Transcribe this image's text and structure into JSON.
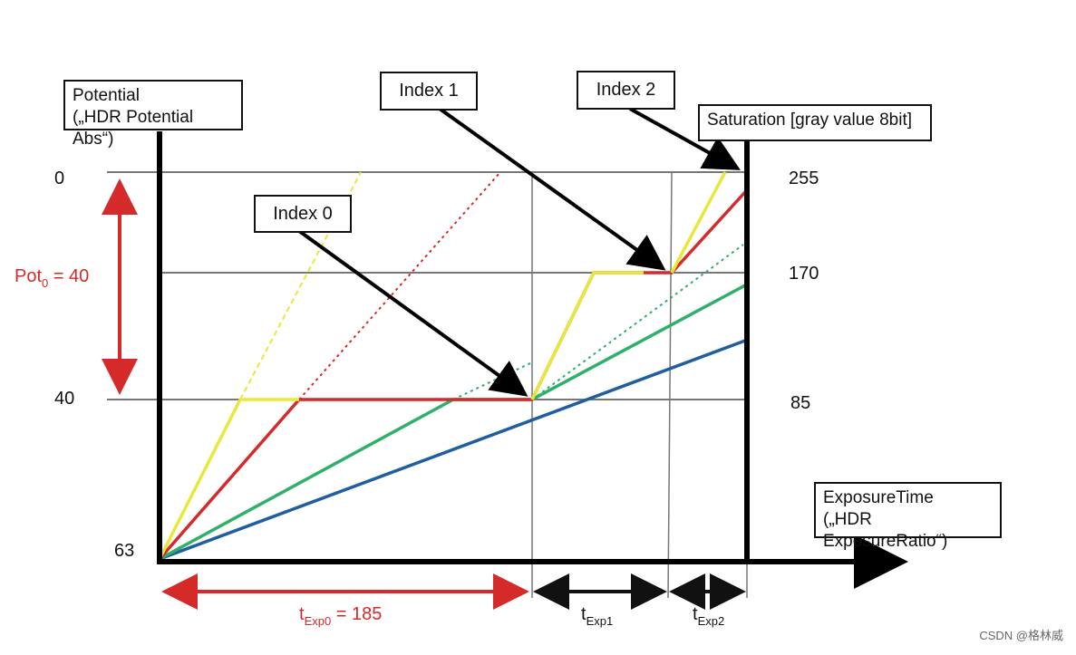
{
  "boxes": {
    "potential_line1": "Potential",
    "potential_line2": "(„HDR Potential Abs“)",
    "index0": "Index 0",
    "index1": "Index 1",
    "index2": "Index 2",
    "saturation": "Saturation [gray value 8bit]",
    "exposure_line1": "ExposureTime",
    "exposure_line2": "(„HDR ExposureRatio“)"
  },
  "left_labels": {
    "pot_top": "0",
    "pot_mid": "40",
    "pot_bottom": "63"
  },
  "right_labels": {
    "sat_top": "255",
    "sat_mid": "170",
    "sat_low": "85"
  },
  "pot0": {
    "prefix": "Pot",
    "sub": "0",
    "suffix": " = 40"
  },
  "texp": {
    "t": "t",
    "exp0_sub": "Exp0",
    "exp0_value": " = 185",
    "exp1_sub": "Exp1",
    "exp2_sub": "Exp2"
  },
  "watermark": "CSDN @格林威",
  "colors": {
    "yellow": "#e8e83a",
    "red": "#d42a2a",
    "green": "#2db06a",
    "blue": "#1f5fa0",
    "grid": "#777777",
    "axis": "#000000"
  }
}
